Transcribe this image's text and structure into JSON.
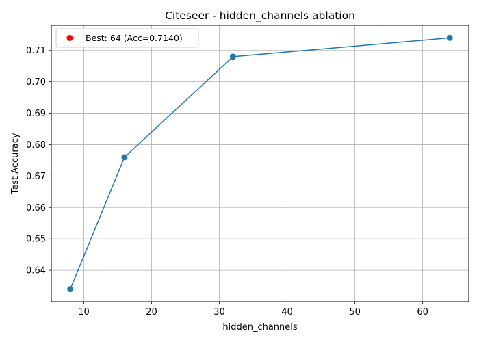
{
  "chart_data": {
    "type": "line",
    "title": "Citeseer - hidden_channels ablation",
    "xlabel": "hidden_channels",
    "ylabel": "Test Accuracy",
    "xlim": [
      5.2,
      66.8
    ],
    "ylim": [
      0.63,
      0.718
    ],
    "xticks": [
      10,
      20,
      30,
      40,
      50,
      60
    ],
    "yticks": [
      0.64,
      0.65,
      0.66,
      0.67,
      0.68,
      0.69,
      0.7,
      0.71
    ],
    "grid": true,
    "legend_position": "top-left",
    "series": [
      {
        "x": [
          8,
          16,
          32,
          64
        ],
        "y": [
          0.634,
          0.676,
          0.708,
          0.714
        ],
        "color": "#1f77b4",
        "marker": "circle"
      }
    ],
    "best": {
      "label": "Best: 64 (Acc=0.7140)",
      "x": 64,
      "y": 0.714,
      "color": "#ff0000"
    }
  }
}
